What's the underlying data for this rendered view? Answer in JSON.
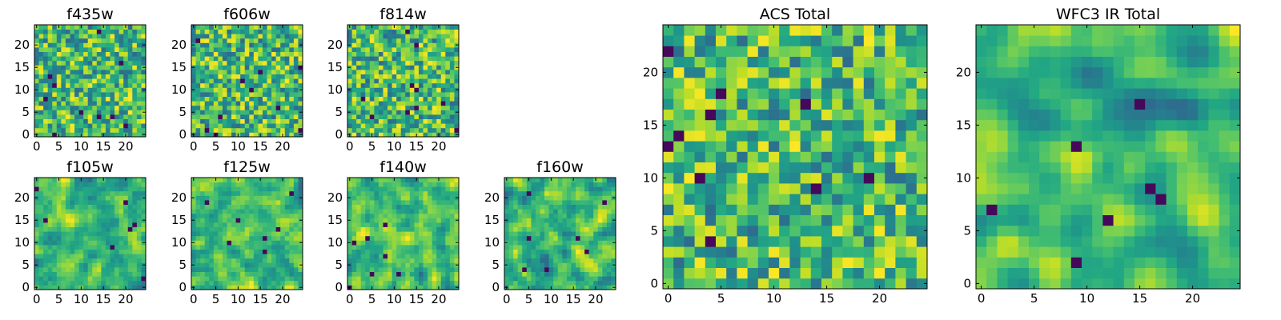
{
  "chart_data": [
    {
      "type": "heatmap",
      "title": "f435w",
      "grid": [
        25,
        25
      ],
      "xticks": [
        0,
        5,
        10,
        15,
        20
      ],
      "yticks": [
        0,
        5,
        10,
        15,
        20
      ],
      "xlim": [
        0,
        24
      ],
      "ylim": [
        0,
        24
      ],
      "colormap": "viridis",
      "seed": 11,
      "smooth": 0
    },
    {
      "type": "heatmap",
      "title": "f606w",
      "grid": [
        25,
        25
      ],
      "xticks": [
        0,
        5,
        10,
        15,
        20
      ],
      "yticks": [
        0,
        5,
        10,
        15,
        20
      ],
      "xlim": [
        0,
        24
      ],
      "ylim": [
        0,
        24
      ],
      "colormap": "viridis",
      "seed": 23,
      "smooth": 0
    },
    {
      "type": "heatmap",
      "title": "f814w",
      "grid": [
        25,
        25
      ],
      "xticks": [
        0,
        5,
        10,
        15,
        20
      ],
      "yticks": [
        0,
        5,
        10,
        15,
        20
      ],
      "xlim": [
        0,
        24
      ],
      "ylim": [
        0,
        24
      ],
      "colormap": "viridis",
      "seed": 37,
      "smooth": 0
    },
    {
      "type": "heatmap",
      "title": "f105w",
      "grid": [
        25,
        25
      ],
      "xticks": [
        0,
        5,
        10,
        15,
        20
      ],
      "yticks": [
        0,
        5,
        10,
        15,
        20
      ],
      "xlim": [
        0,
        24
      ],
      "ylim": [
        0,
        24
      ],
      "colormap": "viridis",
      "seed": 41,
      "smooth": 1
    },
    {
      "type": "heatmap",
      "title": "f125w",
      "grid": [
        25,
        25
      ],
      "xticks": [
        0,
        5,
        10,
        15,
        20
      ],
      "yticks": [
        0,
        5,
        10,
        15,
        20
      ],
      "xlim": [
        0,
        24
      ],
      "ylim": [
        0,
        24
      ],
      "colormap": "viridis",
      "seed": 53,
      "smooth": 1
    },
    {
      "type": "heatmap",
      "title": "f140w",
      "grid": [
        25,
        25
      ],
      "xticks": [
        0,
        5,
        10,
        15,
        20
      ],
      "yticks": [
        0,
        5,
        10,
        15,
        20
      ],
      "xlim": [
        0,
        24
      ],
      "ylim": [
        0,
        24
      ],
      "colormap": "viridis",
      "seed": 67,
      "smooth": 1
    },
    {
      "type": "heatmap",
      "title": "f160w",
      "grid": [
        25,
        25
      ],
      "xticks": [
        0,
        5,
        10,
        15,
        20
      ],
      "yticks": [
        0,
        5,
        10,
        15,
        20
      ],
      "xlim": [
        0,
        24
      ],
      "ylim": [
        0,
        24
      ],
      "colormap": "viridis",
      "seed": 79,
      "smooth": 1
    },
    {
      "type": "heatmap",
      "title": "ACS Total",
      "grid": [
        25,
        25
      ],
      "xticks": [
        0,
        5,
        10,
        15,
        20
      ],
      "yticks": [
        0,
        5,
        10,
        15,
        20
      ],
      "xlim": [
        0,
        24
      ],
      "ylim": [
        0,
        24
      ],
      "colormap": "viridis",
      "seed": 83,
      "smooth": 0
    },
    {
      "type": "heatmap",
      "title": "WFC3 IR Total",
      "grid": [
        25,
        25
      ],
      "xticks": [
        0,
        5,
        10,
        15,
        20
      ],
      "yticks": [
        0,
        5,
        10,
        15,
        20
      ],
      "xlim": [
        0,
        24
      ],
      "ylim": [
        0,
        24
      ],
      "colormap": "viridis",
      "seed": 97,
      "smooth": 2
    }
  ]
}
